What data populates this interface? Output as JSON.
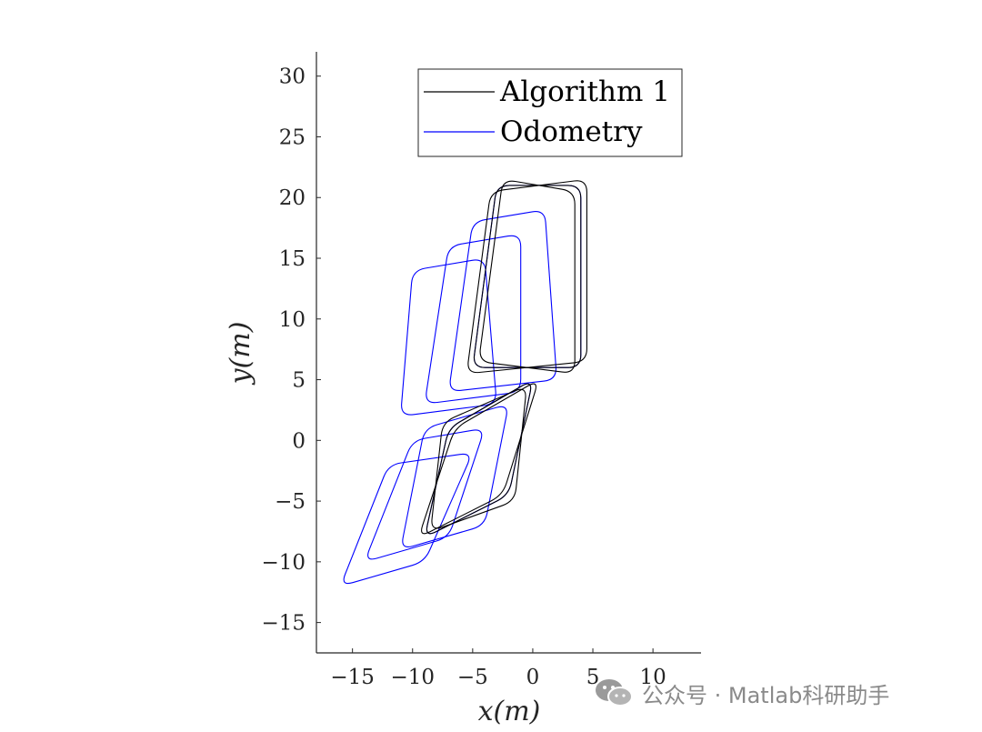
{
  "chart_data": {
    "type": "line",
    "xlabel": "x(m)",
    "ylabel": "y(m)",
    "xlim": [
      -18,
      14
    ],
    "ylim": [
      -17.5,
      32
    ],
    "x_ticks": [
      -15,
      -10,
      -5,
      0,
      5,
      10
    ],
    "y_ticks": [
      -15,
      -10,
      -5,
      0,
      5,
      10,
      15,
      20,
      25,
      30
    ],
    "x_tick_labels": [
      "−15",
      "−10",
      "−5",
      "0",
      "5",
      "10"
    ],
    "y_tick_labels": [
      "−15",
      "−10",
      "−5",
      "0",
      "5",
      "10",
      "15",
      "20",
      "25",
      "30"
    ],
    "grid": false,
    "legend_position": "top-right",
    "series": [
      {
        "name": "Algorithm 1",
        "color": "#000000",
        "loops": [
          {
            "lower": [
              [
                -9,
                -8
              ],
              [
                -2,
                -4.5
              ],
              [
                0,
                5
              ],
              [
                -7,
                1
              ]
            ],
            "upper": [
              [
                -5,
                6
              ],
              [
                4,
                6
              ],
              [
                4,
                21
              ],
              [
                -3,
                21
              ]
            ]
          },
          {
            "lower": [
              [
                -9.5,
                -8
              ],
              [
                -2.5,
                -4.5
              ],
              [
                0.5,
                5
              ],
              [
                -6.5,
                1
              ]
            ],
            "upper": [
              [
                -5.5,
                5.5
              ],
              [
                4.5,
                6.5
              ],
              [
                4.5,
                21.5
              ],
              [
                -3.5,
                20.5
              ]
            ]
          },
          {
            "lower": [
              [
                -8.5,
                -7.5
              ],
              [
                -1.5,
                -5
              ],
              [
                -0.5,
                4.5
              ],
              [
                -7.5,
                1.5
              ]
            ],
            "upper": [
              [
                -4.5,
                6.5
              ],
              [
                3.5,
                5.5
              ],
              [
                3.5,
                20.5
              ],
              [
                -2.5,
                21.5
              ]
            ]
          }
        ]
      },
      {
        "name": "Odometry",
        "color": "#0000ff",
        "loops": [
          {
            "lower": [
              [
                -9,
                -8
              ],
              [
                -2,
                -4.5
              ],
              [
                0,
                5
              ],
              [
                -7,
                1
              ]
            ],
            "upper": [
              [
                -5,
                6
              ],
              [
                4,
                6
              ],
              [
                4,
                21
              ],
              [
                -3,
                21
              ]
            ]
          },
          {
            "lower": [
              [
                -11,
                -9
              ],
              [
                -4,
                -7
              ],
              [
                -2,
                3
              ],
              [
                -9,
                1
              ]
            ],
            "upper": [
              [
                -7,
                4
              ],
              [
                2,
                5
              ],
              [
                1,
                19
              ],
              [
                -5,
                18
              ]
            ]
          },
          {
            "lower": [
              [
                -14,
                -10
              ],
              [
                -7,
                -8
              ],
              [
                -4,
                1
              ],
              [
                -10,
                0
              ]
            ],
            "upper": [
              [
                -9,
                3
              ],
              [
                -1,
                4
              ],
              [
                -1,
                17
              ],
              [
                -7,
                16
              ]
            ]
          },
          {
            "lower": [
              [
                -16,
                -12
              ],
              [
                -9,
                -10
              ],
              [
                -5,
                -1
              ],
              [
                -12,
                -2
              ]
            ],
            "upper": [
              [
                -11,
                2
              ],
              [
                -3,
                3
              ],
              [
                -4,
                15
              ],
              [
                -10,
                14
              ]
            ]
          }
        ]
      }
    ]
  },
  "watermark": {
    "text": "公众号 · Matlab科研助手",
    "icon": "wechat-icon"
  }
}
